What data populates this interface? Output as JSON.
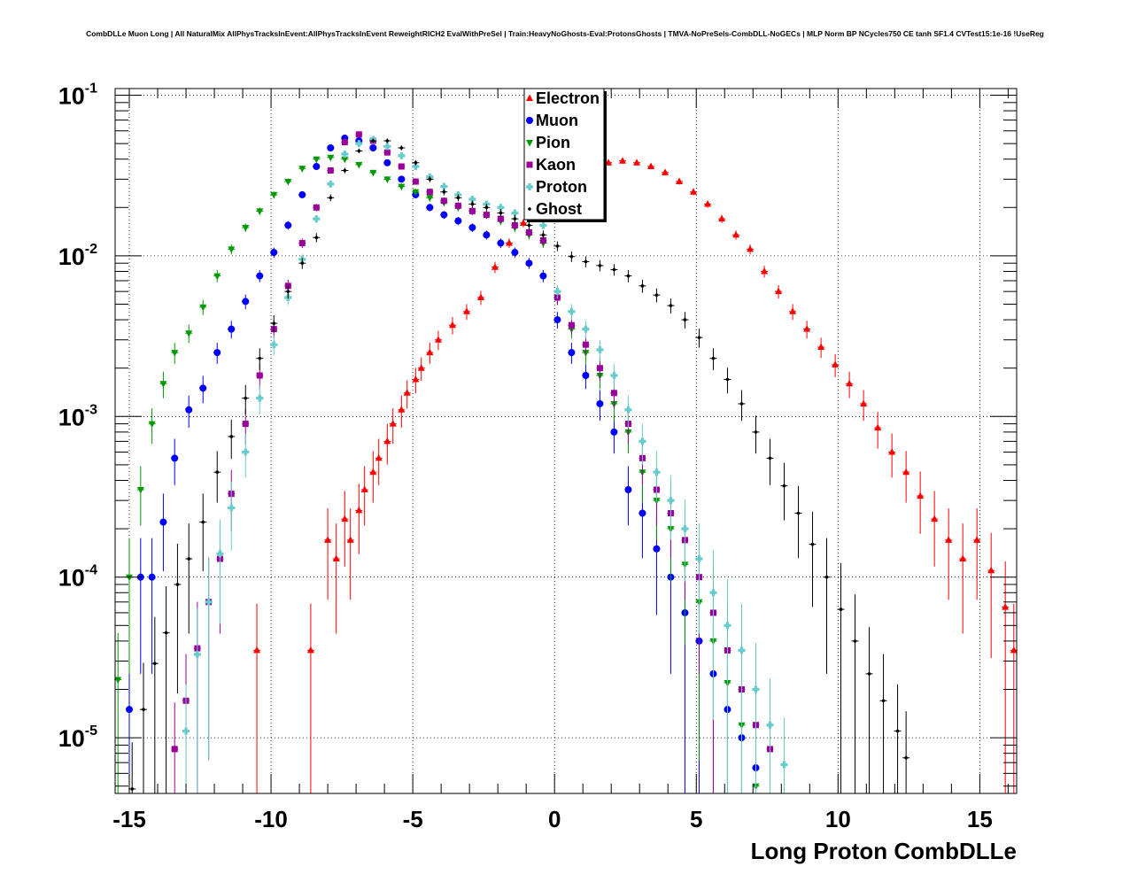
{
  "header": {
    "title": "CombDLLe Muon Long | All NaturalMix AllPhysTracksInEvent:AllPhysTracksInEvent ReweightRICH2 EvalWithPreSel | Train:HeavyNoGhosts-Eval:ProtonsGhosts | TMVA-NoPreSels-CombDLL-NoGECs | MLP Norm BP NCycles750 CE tanh SF1.4 CVTest15:1e-16 !UseReg"
  },
  "chart_data": {
    "type": "scatter",
    "title": "CombDLLe Muon Long | All NaturalMix AllPhysTracksInEvent:AllPhysTracksInEvent ReweightRICH2 EvalWithPreSel | Train:HeavyNoGhosts-Eval:ProtonsGhosts | TMVA-NoPreSels-CombDLL-NoGECs | MLP Norm BP NCycles750 CE tanh SF1.4 CVTest15:1e-16 !UseReg",
    "xlabel": "Long Proton CombDLLe",
    "ylabel": "",
    "xlim": [
      -15.5,
      16.3
    ],
    "ylim": [
      4.5e-06,
      0.11
    ],
    "y_scale": "log",
    "grid": true,
    "legend_position": "top-center",
    "x_ticks": [
      {
        "value": -15,
        "label": "-15"
      },
      {
        "value": -10,
        "label": "-10"
      },
      {
        "value": -5,
        "label": "-5"
      },
      {
        "value": 0,
        "label": "0"
      },
      {
        "value": 5,
        "label": "5"
      },
      {
        "value": 10,
        "label": "10"
      },
      {
        "value": 15,
        "label": "15"
      }
    ],
    "y_ticks": [
      {
        "value": 1e-05,
        "mantissa": "10",
        "exponent": "-5"
      },
      {
        "value": 0.0001,
        "mantissa": "10",
        "exponent": "-4"
      },
      {
        "value": 0.001,
        "mantissa": "10",
        "exponent": "-3"
      },
      {
        "value": 0.01,
        "mantissa": "10",
        "exponent": "-2"
      },
      {
        "value": 0.1,
        "mantissa": "10",
        "exponent": "-1"
      }
    ],
    "series": [
      {
        "name": "Electron",
        "color": "#ff0000",
        "marker": "triangle-up",
        "x": [
          -10.5,
          -8.6,
          -8.0,
          -7.7,
          -7.4,
          -7.2,
          -6.9,
          -6.7,
          -6.4,
          -6.2,
          -5.9,
          -5.7,
          -5.4,
          -5.2,
          -4.9,
          -4.7,
          -4.4,
          -4.1,
          -3.6,
          -3.1,
          -2.6,
          -2.1,
          -1.6,
          -1.1,
          -0.6,
          -0.1,
          0.4,
          0.9,
          1.4,
          1.9,
          2.4,
          2.9,
          3.4,
          3.9,
          4.4,
          4.9,
          5.4,
          5.9,
          6.4,
          6.9,
          7.4,
          7.9,
          8.4,
          8.9,
          9.4,
          9.9,
          10.4,
          10.9,
          11.4,
          11.9,
          12.4,
          12.9,
          13.4,
          13.9,
          14.4,
          14.9,
          15.4,
          15.9,
          16.2
        ],
        "y": [
          3.5e-05,
          3.5e-05,
          0.00017,
          0.00013,
          0.00023,
          0.00017,
          0.00026,
          0.00035,
          0.00045,
          0.00055,
          0.0007,
          0.0009,
          0.0011,
          0.0014,
          0.0017,
          0.002,
          0.0025,
          0.003,
          0.0037,
          0.0045,
          0.0055,
          0.0085,
          0.012,
          0.016,
          0.02,
          0.025,
          0.029,
          0.033,
          0.036,
          0.038,
          0.039,
          0.038,
          0.036,
          0.033,
          0.029,
          0.025,
          0.021,
          0.017,
          0.0135,
          0.011,
          0.008,
          0.006,
          0.0045,
          0.0035,
          0.0027,
          0.0021,
          0.0016,
          0.0012,
          0.00085,
          0.0006,
          0.00045,
          0.00032,
          0.00023,
          0.00017,
          0.00013,
          0.00017,
          0.00011,
          6.5e-05,
          3.5e-05
        ]
      },
      {
        "name": "Muon",
        "color": "#0000ff",
        "marker": "circle",
        "x": [
          -15.0,
          -14.6,
          -14.2,
          -13.8,
          -13.4,
          -12.9,
          -12.4,
          -11.9,
          -11.4,
          -10.9,
          -10.4,
          -9.9,
          -9.4,
          -8.9,
          -8.4,
          -7.9,
          -7.4,
          -6.9,
          -6.4,
          -5.9,
          -5.4,
          -4.9,
          -4.4,
          -3.9,
          -3.4,
          -2.9,
          -2.4,
          -1.9,
          -1.4,
          -0.9,
          -0.4,
          0.1,
          0.6,
          1.1,
          1.6,
          2.1,
          2.6,
          3.1,
          3.6,
          4.1,
          4.6,
          5.1,
          5.6,
          6.1,
          6.6,
          7.1
        ],
        "y": [
          1.5e-05,
          0.0001,
          0.0001,
          0.00022,
          0.00055,
          0.0011,
          0.0015,
          0.0025,
          0.0035,
          0.0052,
          0.0075,
          0.0105,
          0.0155,
          0.024,
          0.036,
          0.047,
          0.054,
          0.052,
          0.047,
          0.038,
          0.03,
          0.024,
          0.02,
          0.018,
          0.0165,
          0.015,
          0.0135,
          0.012,
          0.0105,
          0.009,
          0.0075,
          0.004,
          0.0025,
          0.0018,
          0.0012,
          0.0008,
          0.00035,
          0.00025,
          0.00015,
          0.0001,
          6e-05,
          4e-05,
          2.5e-05,
          1.5e-05,
          1e-05,
          6.5e-06
        ]
      },
      {
        "name": "Pion",
        "color": "#009900",
        "marker": "triangle-down",
        "x": [
          -15.4,
          -15.0,
          -14.6,
          -14.2,
          -13.8,
          -13.4,
          -12.9,
          -12.4,
          -11.9,
          -11.4,
          -10.9,
          -10.4,
          -9.9,
          -9.4,
          -8.9,
          -8.4,
          -7.9,
          -7.4,
          -6.9,
          -6.4,
          -5.9,
          -5.4,
          -4.9,
          -4.4,
          -3.9,
          -3.4,
          -2.9,
          -2.4,
          -1.9,
          -1.4,
          -0.9,
          -0.4,
          0.1,
          0.6,
          1.1,
          1.6,
          2.1,
          2.6,
          3.1,
          3.6,
          4.1,
          4.6,
          5.1,
          5.6,
          6.1,
          6.6,
          7.1
        ],
        "y": [
          2.3e-05,
          0.0001,
          0.00035,
          0.0009,
          0.0016,
          0.0025,
          0.0033,
          0.0048,
          0.0075,
          0.011,
          0.015,
          0.019,
          0.024,
          0.029,
          0.035,
          0.04,
          0.041,
          0.04,
          0.037,
          0.033,
          0.03,
          0.027,
          0.025,
          0.023,
          0.0215,
          0.02,
          0.019,
          0.018,
          0.0165,
          0.015,
          0.0135,
          0.012,
          0.0055,
          0.0035,
          0.0025,
          0.0018,
          0.0012,
          0.0008,
          0.00045,
          0.0003,
          0.0002,
          0.00012,
          7e-05,
          4e-05,
          2.2e-05,
          1.2e-05,
          5e-06
        ]
      },
      {
        "name": "Kaon",
        "color": "#990099",
        "marker": "square",
        "x": [
          -13.4,
          -13.0,
          -12.6,
          -12.2,
          -11.8,
          -11.4,
          -10.9,
          -10.4,
          -9.9,
          -9.4,
          -8.9,
          -8.4,
          -7.9,
          -7.4,
          -6.9,
          -6.4,
          -5.9,
          -5.4,
          -4.9,
          -4.4,
          -3.9,
          -3.4,
          -2.9,
          -2.4,
          -1.9,
          -1.4,
          -0.9,
          -0.4,
          0.1,
          0.6,
          1.1,
          1.6,
          2.1,
          2.6,
          3.1,
          3.6,
          4.1,
          4.6,
          5.1,
          5.6,
          6.1,
          6.6,
          7.1,
          7.6
        ],
        "y": [
          8.5e-06,
          1.7e-05,
          3.6e-05,
          7e-05,
          0.00013,
          0.00033,
          0.0009,
          0.0018,
          0.0035,
          0.0065,
          0.012,
          0.02,
          0.034,
          0.051,
          0.057,
          0.052,
          0.044,
          0.036,
          0.029,
          0.025,
          0.022,
          0.0205,
          0.019,
          0.018,
          0.017,
          0.0155,
          0.014,
          0.0125,
          0.0055,
          0.0037,
          0.0028,
          0.002,
          0.0014,
          0.0009,
          0.00055,
          0.00035,
          0.00025,
          0.00017,
          0.0001,
          6e-05,
          3.5e-05,
          2e-05,
          1.2e-05,
          8.5e-06
        ]
      },
      {
        "name": "Proton",
        "color": "#66cccc",
        "marker": "cross",
        "x": [
          -13.0,
          -12.6,
          -12.2,
          -11.8,
          -11.4,
          -10.9,
          -10.4,
          -9.9,
          -9.4,
          -8.9,
          -8.4,
          -7.9,
          -7.4,
          -6.9,
          -6.4,
          -5.9,
          -5.4,
          -4.9,
          -4.4,
          -3.9,
          -3.4,
          -2.9,
          -2.4,
          -1.9,
          -1.4,
          -0.9,
          -0.4,
          0.1,
          0.6,
          1.1,
          1.6,
          2.1,
          2.6,
          3.1,
          3.6,
          4.1,
          4.6,
          5.1,
          5.6,
          6.1,
          6.6,
          7.1,
          7.6,
          8.1
        ],
        "y": [
          1.1e-05,
          3.3e-05,
          7e-05,
          0.00014,
          0.00027,
          0.0006,
          0.0013,
          0.0028,
          0.0055,
          0.0095,
          0.017,
          0.028,
          0.043,
          0.05,
          0.053,
          0.048,
          0.042,
          0.036,
          0.031,
          0.027,
          0.024,
          0.0225,
          0.021,
          0.02,
          0.0185,
          0.017,
          0.0155,
          0.006,
          0.0045,
          0.0035,
          0.0026,
          0.0018,
          0.0011,
          0.0007,
          0.00045,
          0.0003,
          0.0002,
          0.00013,
          8e-05,
          5e-05,
          3.5e-05,
          2e-05,
          1.2e-05,
          6.8e-06
        ]
      },
      {
        "name": "Ghost",
        "color": "#000000",
        "marker": "small",
        "x": [
          -14.9,
          -14.5,
          -14.1,
          -13.7,
          -13.3,
          -12.9,
          -12.4,
          -11.9,
          -11.4,
          -10.9,
          -10.4,
          -9.9,
          -9.4,
          -8.9,
          -8.4,
          -7.9,
          -7.4,
          -6.9,
          -6.4,
          -5.9,
          -5.4,
          -4.9,
          -4.4,
          -3.9,
          -3.4,
          -2.9,
          -2.4,
          -1.9,
          -1.4,
          -0.9,
          -0.4,
          0.1,
          0.6,
          1.1,
          1.6,
          2.1,
          2.6,
          3.1,
          3.6,
          4.1,
          4.6,
          5.1,
          5.6,
          6.1,
          6.6,
          7.1,
          7.6,
          8.1,
          8.6,
          9.1,
          9.6,
          10.1,
          10.6,
          11.1,
          11.6,
          12.1,
          12.4
        ],
        "y": [
          4.8e-06,
          1.5e-05,
          2.9e-05,
          4.5e-05,
          9e-05,
          0.00013,
          0.00022,
          0.00045,
          0.00075,
          0.0013,
          0.0023,
          0.0038,
          0.006,
          0.009,
          0.013,
          0.023,
          0.034,
          0.045,
          0.052,
          0.052,
          0.047,
          0.038,
          0.03,
          0.025,
          0.023,
          0.021,
          0.02,
          0.0185,
          0.017,
          0.0155,
          0.0135,
          0.0115,
          0.0099,
          0.0092,
          0.0087,
          0.0082,
          0.0075,
          0.0065,
          0.0057,
          0.0049,
          0.004,
          0.0031,
          0.0023,
          0.0017,
          0.0012,
          0.0008,
          0.00055,
          0.00037,
          0.00025,
          0.00016,
          0.0001,
          6.3e-05,
          4e-05,
          2.5e-05,
          1.7e-05,
          1.1e-05,
          7.5e-06
        ]
      }
    ]
  }
}
